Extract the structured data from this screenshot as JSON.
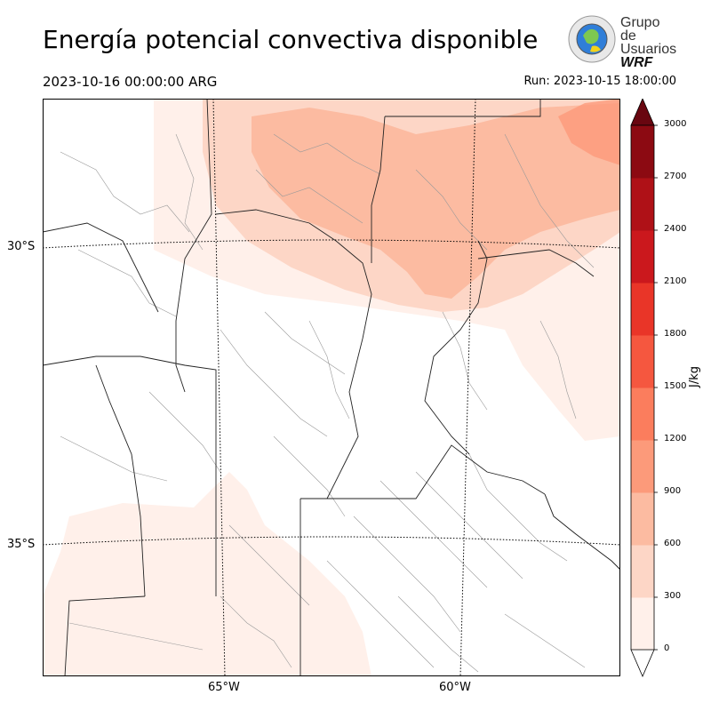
{
  "title": "Energía potencial convectiva disponible",
  "valid_time": "2023-10-16 00:00:00 ARG",
  "run_time": "Run: 2023-10-15 18:00:00",
  "logo": {
    "line1": "Grupo de",
    "line2": "Usuarios",
    "line3": "WRF"
  },
  "lat_labels": [
    "30°S",
    "35°S"
  ],
  "lon_labels": [
    "65°W",
    "60°W"
  ],
  "colorbar": {
    "label": "J/kg",
    "ticks": [
      "0",
      "300",
      "600",
      "900",
      "1200",
      "1500",
      "1800",
      "2100",
      "2400",
      "2700",
      "3000"
    ],
    "colors": [
      "#fff0ea",
      "#fdd6c6",
      "#fcbba1",
      "#fc9a7a",
      "#fb7d5d",
      "#f5573f",
      "#e93528",
      "#cb181d",
      "#af1117",
      "#8c0a12",
      "#690610"
    ]
  },
  "chart_data": {
    "type": "heatmap",
    "variable": "Energía potencial convectiva disponible",
    "units": "J/kg",
    "levels": [
      0,
      300,
      600,
      900,
      1200,
      1500,
      1800,
      2100,
      2400,
      2700,
      3000
    ],
    "lat_ticks": [
      "30°S",
      "35°S"
    ],
    "lon_ticks": [
      "65°W",
      "60°W"
    ],
    "max_observed_range": [
      900,
      1200
    ]
  }
}
